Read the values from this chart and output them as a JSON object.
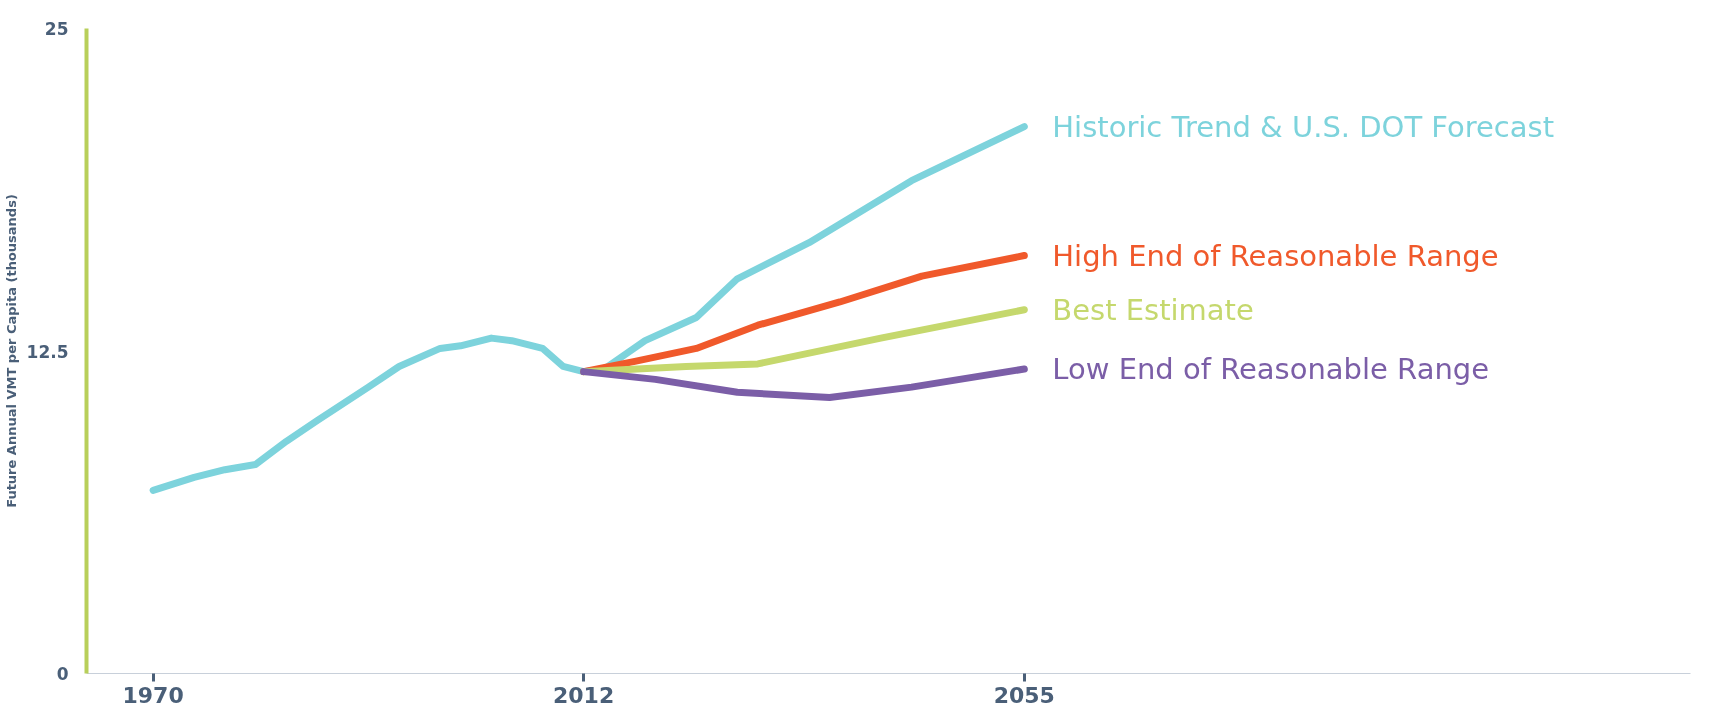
{
  "chart_data": {
    "type": "line",
    "ylabel": "Future Annual VMT per Capita (thousands)",
    "xlim": [
      1963.5,
      2120
    ],
    "xticks": [
      1970,
      2012,
      2055
    ],
    "ylim": [
      0,
      25
    ],
    "yticks": [
      0,
      12.5,
      25
    ],
    "grid": false,
    "marker": "none",
    "line_style": "solid",
    "series": [
      {
        "name": "Historic Trend & U.S. DOT Forecast",
        "color": "#7dd3dc",
        "x": [
          1970,
          1974,
          1977,
          1980,
          1983,
          1986,
          1991,
          1994,
          1998,
          2000,
          2003,
          2005,
          2008,
          2010,
          2012,
          2014,
          2018,
          2023,
          2027,
          2034,
          2044,
          2055
        ],
        "values": [
          7.1,
          7.6,
          7.9,
          8.1,
          9.0,
          9.8,
          11.1,
          11.9,
          12.6,
          12.7,
          13.0,
          12.9,
          12.6,
          11.9,
          11.7,
          11.8,
          12.9,
          13.8,
          15.3,
          16.7,
          19.1,
          21.2
        ]
      },
      {
        "name": "High End of Reasonable Range",
        "color": "#f0592b",
        "x": [
          2012,
          2017,
          2023,
          2029,
          2037,
          2045,
          2055
        ],
        "values": [
          11.7,
          12.1,
          12.6,
          13.5,
          14.4,
          15.4,
          16.2
        ]
      },
      {
        "name": "Best Estimate",
        "color": "#c5d86d",
        "x": [
          2012,
          2022,
          2029,
          2041,
          2055
        ],
        "values": [
          11.7,
          11.9,
          12.0,
          13.0,
          14.1
        ]
      },
      {
        "name": "Low End of Reasonable Range",
        "color": "#7b5ea7",
        "x": [
          2012,
          2019,
          2027,
          2036,
          2044,
          2055
        ],
        "values": [
          11.7,
          11.4,
          10.9,
          10.7,
          11.1,
          11.8
        ]
      }
    ]
  }
}
